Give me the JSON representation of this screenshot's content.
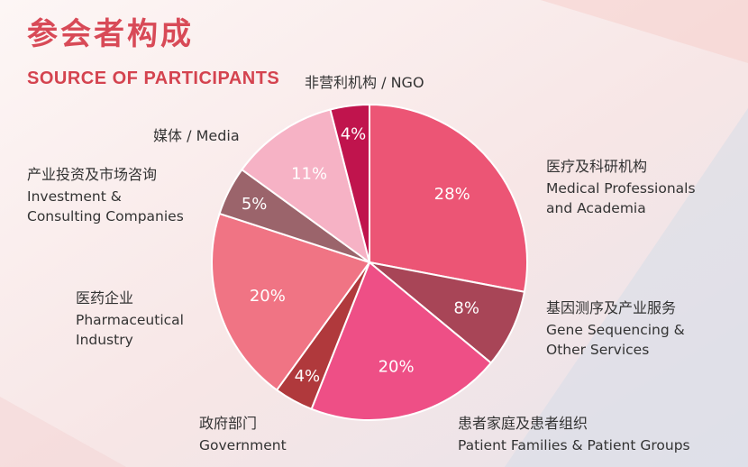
{
  "page": {
    "title": "参会者构成",
    "subtitle": "SOURCE OF PARTICIPANTS"
  },
  "chart_data": {
    "type": "pie",
    "title": "参会者构成",
    "subtitle": "SOURCE OF PARTICIPANTS",
    "start_angle_deg": 0,
    "direction": "clockwise",
    "slices": [
      {
        "name_cn": "医疗及科研机构",
        "name_en_1": "Medical Professionals",
        "name_en_2": "and Academia",
        "value": 28,
        "label": "28%",
        "color": "#ec5575"
      },
      {
        "name_cn": "基因测序及产业服务",
        "name_en_1": "Gene Sequencing &",
        "name_en_2": "Other Services",
        "value": 8,
        "label": "8%",
        "color": "#a84557"
      },
      {
        "name_cn": "患者家庭及患者组织",
        "name_en_1": "Patient Families & Patient Groups",
        "name_en_2": "",
        "value": 20,
        "label": "20%",
        "color": "#ee4f86"
      },
      {
        "name_cn": "政府部门",
        "name_en_1": "Government",
        "name_en_2": "",
        "value": 4,
        "label": "4%",
        "color": "#b0393c"
      },
      {
        "name_cn": "医药企业",
        "name_en_1": "Pharmaceutical",
        "name_en_2": "Industry",
        "value": 20,
        "label": "20%",
        "color": "#f07484"
      },
      {
        "name_cn": "产业投资及市场咨询",
        "name_en_1": "Investment &",
        "name_en_2": "Consulting Companies",
        "value": 5,
        "label": "5%",
        "color": "#9b646b"
      },
      {
        "name_cn": "媒体",
        "name_en_1": "Media",
        "name_en_2": "",
        "value": 11,
        "label": "11%",
        "color": "#f6b2c5"
      },
      {
        "name_cn": "非营利机构",
        "name_en_1": "NGO",
        "name_en_2": "",
        "value": 4,
        "label": "4%",
        "color": "#c0144d"
      }
    ]
  }
}
